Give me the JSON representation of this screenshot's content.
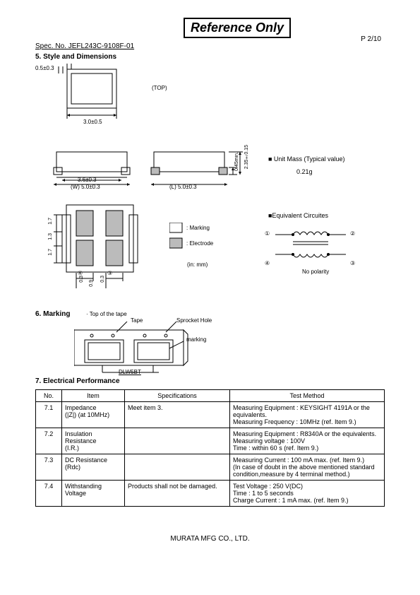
{
  "header": {
    "ref_only": "Reference Only",
    "spec_no": "Spec. No. JEFL243C-9108F-01",
    "page": "P 2/10"
  },
  "sections": {
    "s5": "5. Style and Dimensions",
    "s6": "6. Marking",
    "s7": "7. Electrical Performance"
  },
  "dimensions": {
    "d1": "0.5±0.3",
    "d2": "3.0±0.5",
    "d3": "3.6±0.3",
    "d4": "(W) 5.0±0.3",
    "d5": "(L) 5.0±0.3",
    "d6": "0.45min.",
    "d7": "2.35±0.15",
    "d8": "1.7",
    "d9": "1.3",
    "d10": "0.3",
    "d11": "0.3",
    "d12": "0.9",
    "d13": "0.3",
    "top_lbl": "(TOP)",
    "marking_lbl": ": Marking",
    "electrode_lbl": ": Electrode",
    "unit_lbl": "(in: mm)",
    "mass_hdr": "■ Unit Mass (Typical value)",
    "mass_val": "0.21g",
    "eq_hdr": "■Equivalent Circuites",
    "c1": "①",
    "c2": "②",
    "c3": "③",
    "c4": "④",
    "no_polarity": "No polarity",
    "top_tape": "· Top of the tape",
    "tape": "Tape",
    "sprocket": "Sprocket Hole",
    "marking": "marking",
    "dlw5bt": "DLW5BT"
  },
  "table": {
    "h1": "No.",
    "h2": "Item",
    "h3": "Specifications",
    "h4": "Test Method",
    "rows": [
      {
        "no": "7.1",
        "item": "Impedance\n(|Z|) (at 10MHz)",
        "spec": "Meet item 3.",
        "test": "Measuring Equipment : KEYSIGHT 4191A or the equivalents.\nMeasuring Frequency : 10MHz            (ref. Item 9.)"
      },
      {
        "no": "7.2",
        "item": "Insulation\nResistance\n(I.R.)",
        "spec": "",
        "test": "Measuring Equipment : R8340A or the equivalents.\nMeasuring voltage : 100V\nTime : within 60 s                              (ref. Item 9.)"
      },
      {
        "no": "7.3",
        "item": "DC Resistance\n(Rdc)",
        "spec": "",
        "test": "Measuring Current : 100 mA max.       (ref. Item 9.)\n(In case of doubt in the above mentioned standard\n condition,measure by 4 terminal method.)"
      },
      {
        "no": "7.4",
        "item": "Withstanding\nVoltage",
        "spec": "Products shall not be damaged.",
        "test": "Test Voltage : 250 V(DC)\nTime : 1 to 5 seconds\nCharge Current : 1 mA max.              (ref. Item 9.)"
      }
    ]
  },
  "footer": "MURATA MFG CO., LTD."
}
